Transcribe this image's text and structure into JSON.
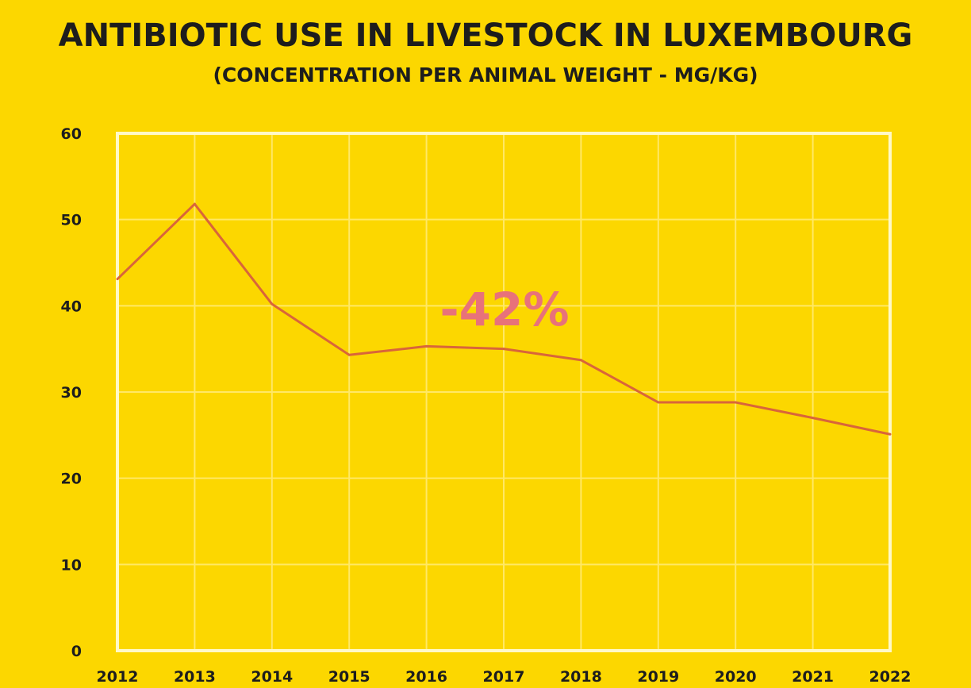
{
  "chart_data": {
    "type": "line",
    "title": "ANTIBIOTIC USE IN LIVESTOCK IN LUXEMBOURG",
    "subtitle": "(CONCENTRATION PER ANIMAL WEIGHT - MG/KG)",
    "xlabel": "",
    "ylabel": "",
    "x": [
      "2012",
      "2013",
      "2014",
      "2015",
      "2016",
      "2017",
      "2018",
      "2019",
      "2020",
      "2021",
      "2022"
    ],
    "series": [
      {
        "name": "Antibiotic use (mg/kg)",
        "values": [
          43.1,
          51.8,
          40.2,
          34.3,
          35.3,
          35.0,
          33.7,
          28.8,
          28.8,
          27.0,
          25.1
        ]
      }
    ],
    "ylim": [
      0,
      60
    ],
    "yticks": [
      "0",
      "10",
      "20",
      "30",
      "40",
      "50",
      "60"
    ],
    "grid": true,
    "annotation": "-42%",
    "colors": {
      "background": "#FCD700",
      "line": "#D9653A",
      "annotation": "#E8727A",
      "grid": "#FFE866",
      "frame": "#FFF9C8"
    }
  }
}
